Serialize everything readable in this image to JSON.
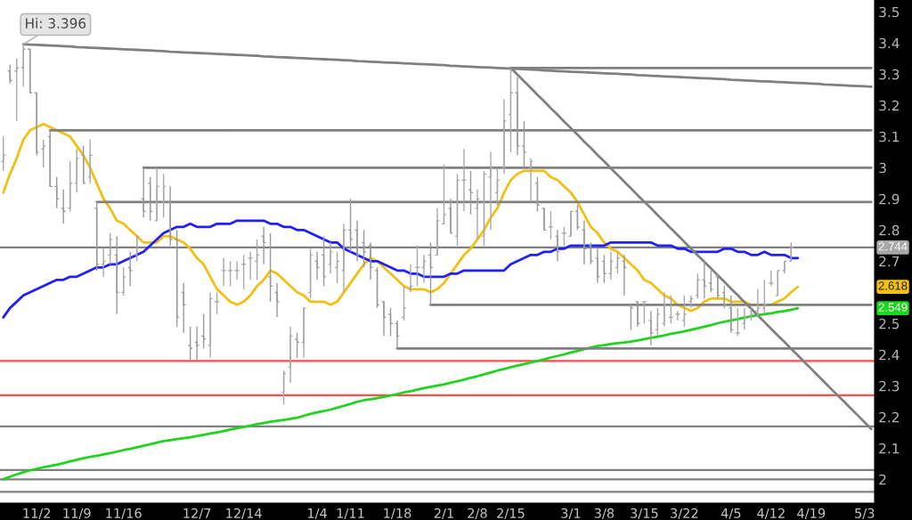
{
  "chart_data": {
    "type": "candlestick",
    "categories": [
      null,
      null,
      null,
      null,
      null,
      "11/2",
      null,
      null,
      null,
      null,
      null,
      "11/9",
      null,
      null,
      null,
      null,
      null,
      null,
      "11/16",
      null,
      null,
      null,
      null,
      null,
      null,
      null,
      null,
      null,
      null,
      "12/7",
      null,
      null,
      null,
      null,
      null,
      null,
      "12/14",
      null,
      null,
      null,
      null,
      null,
      null,
      null,
      null,
      null,
      null,
      "1/4",
      null,
      null,
      null,
      null,
      "1/11",
      null,
      null,
      null,
      null,
      null,
      null,
      "1/18",
      null,
      null,
      null,
      null,
      null,
      null,
      "2/1",
      null,
      null,
      null,
      null,
      "2/8",
      null,
      null,
      null,
      null,
      "2/15",
      null,
      null,
      null,
      null,
      null,
      null,
      null,
      null,
      "3/1",
      null,
      null,
      null,
      null,
      "3/8",
      null,
      null,
      null,
      null,
      null,
      "3/15",
      null,
      null,
      null,
      null,
      null,
      "3/22",
      null,
      null,
      null,
      null,
      null,
      null,
      "4/5",
      null,
      null,
      null,
      null,
      null,
      "4/12",
      null,
      null,
      null,
      null,
      null,
      "4/19",
      null,
      null,
      null,
      null,
      null,
      null,
      null,
      "5/3",
      null
    ],
    "ohlc": [
      [
        3.02,
        3.1,
        2.99,
        3.04
      ],
      [
        3.31,
        3.33,
        3.27,
        3.28
      ],
      [
        3.31,
        3.35,
        3.15,
        3.32
      ],
      [
        3.32,
        3.396,
        3.26,
        3.38
      ],
      [
        3.38,
        3.38,
        3.24,
        3.24
      ],
      [
        3.24,
        3.24,
        3.04,
        3.05
      ],
      [
        3.06,
        3.09,
        3.0,
        3.07
      ],
      [
        3.1,
        3.12,
        2.94,
        2.94
      ],
      [
        2.94,
        2.97,
        2.87,
        2.9
      ],
      [
        2.87,
        2.93,
        2.82,
        2.86
      ],
      [
        2.87,
        3.02,
        2.86,
        2.95
      ],
      [
        2.95,
        3.06,
        2.92,
        3.03
      ],
      [
        3.04,
        3.07,
        2.95,
        2.95
      ],
      [
        2.97,
        3.09,
        2.95,
        3.04
      ],
      [
        2.87,
        2.89,
        2.67,
        2.69
      ],
      [
        2.69,
        2.74,
        2.65,
        2.7
      ],
      [
        2.72,
        2.79,
        2.69,
        2.77
      ],
      [
        2.72,
        2.78,
        2.53,
        2.6
      ],
      [
        2.6,
        2.68,
        2.59,
        2.65
      ],
      [
        2.68,
        2.73,
        2.62,
        2.67
      ],
      [
        2.72,
        2.78,
        2.7,
        2.78
      ],
      [
        2.9,
        3.0,
        2.84,
        2.86
      ],
      [
        2.95,
        2.97,
        2.83,
        2.86
      ],
      [
        2.83,
        3.0,
        2.83,
        2.94
      ],
      [
        2.89,
        2.98,
        2.84,
        2.94
      ],
      [
        2.89,
        2.94,
        2.75,
        2.77
      ],
      [
        2.77,
        2.8,
        2.49,
        2.52
      ],
      [
        2.6,
        2.63,
        2.47,
        2.56
      ],
      [
        2.43,
        2.49,
        2.38,
        2.42
      ],
      [
        2.44,
        2.49,
        2.38,
        2.43
      ],
      [
        2.46,
        2.53,
        2.42,
        2.45
      ],
      [
        2.43,
        2.6,
        2.39,
        2.58
      ],
      [
        2.57,
        2.6,
        2.53,
        2.57
      ],
      [
        2.67,
        2.71,
        2.62,
        2.67
      ],
      [
        2.67,
        2.7,
        2.62,
        2.67
      ],
      [
        2.67,
        2.7,
        2.64,
        2.67
      ],
      [
        2.69,
        2.72,
        2.61,
        2.69
      ],
      [
        2.71,
        2.73,
        2.64,
        2.71
      ],
      [
        2.7,
        2.77,
        2.64,
        2.72
      ],
      [
        2.78,
        2.81,
        2.69,
        2.76
      ],
      [
        2.65,
        2.79,
        2.57,
        2.62
      ],
      [
        2.6,
        2.63,
        2.52,
        2.57
      ],
      [
        2.28,
        2.35,
        2.24,
        2.34
      ],
      [
        2.36,
        2.49,
        2.31,
        2.46
      ],
      [
        2.45,
        2.47,
        2.39,
        2.44
      ],
      [
        2.44,
        2.55,
        2.39,
        2.55
      ],
      [
        2.6,
        2.74,
        2.58,
        2.72
      ],
      [
        2.7,
        2.73,
        2.64,
        2.68
      ],
      [
        2.72,
        2.78,
        2.62,
        2.65
      ],
      [
        2.69,
        2.76,
        2.66,
        2.73
      ],
      [
        2.68,
        2.73,
        2.63,
        2.7
      ],
      [
        2.67,
        2.82,
        2.6,
        2.8
      ],
      [
        2.8,
        2.9,
        2.73,
        2.77
      ],
      [
        2.8,
        2.83,
        2.7,
        2.72
      ],
      [
        2.76,
        2.8,
        2.68,
        2.73
      ],
      [
        2.75,
        2.76,
        2.64,
        2.68
      ],
      [
        2.67,
        2.68,
        2.55,
        2.56
      ],
      [
        2.57,
        2.57,
        2.46,
        2.52
      ],
      [
        2.53,
        2.55,
        2.46,
        2.5
      ],
      [
        2.5,
        2.51,
        2.42,
        2.46
      ],
      [
        2.52,
        2.62,
        2.51,
        2.55
      ],
      [
        2.61,
        2.69,
        2.6,
        2.62
      ],
      [
        2.68,
        2.75,
        2.62,
        2.68
      ],
      [
        2.68,
        2.72,
        2.63,
        2.7
      ],
      [
        2.72,
        2.76,
        2.56,
        2.68
      ],
      [
        2.72,
        2.87,
        2.72,
        2.83
      ],
      [
        2.82,
        3.01,
        2.82,
        2.85
      ],
      [
        2.87,
        2.9,
        2.79,
        2.79
      ],
      [
        2.78,
        2.98,
        2.75,
        2.96
      ],
      [
        2.96,
        3.06,
        2.86,
        2.96
      ],
      [
        2.93,
        2.99,
        2.85,
        2.92
      ],
      [
        2.87,
        2.93,
        2.77,
        2.9
      ],
      [
        2.78,
        2.99,
        2.75,
        2.98
      ],
      [
        2.97,
        3.05,
        2.8,
        3.0
      ],
      [
        2.92,
        3.0,
        2.88,
        2.96
      ],
      [
        3.0,
        3.22,
        2.98,
        3.15
      ],
      [
        3.17,
        3.32,
        3.05,
        3.24
      ],
      [
        3.24,
        3.29,
        3.04,
        3.07
      ],
      [
        3.07,
        3.15,
        3.0,
        3.05
      ],
      [
        3.0,
        3.03,
        2.89,
        3.02
      ],
      [
        2.95,
        2.97,
        2.86,
        2.88
      ],
      [
        2.87,
        2.87,
        2.8,
        2.8
      ],
      [
        2.81,
        2.86,
        2.77,
        2.81
      ],
      [
        2.78,
        2.8,
        2.7,
        2.73
      ],
      [
        2.79,
        2.81,
        2.75,
        2.79
      ],
      [
        2.78,
        2.86,
        2.78,
        2.86
      ],
      [
        2.86,
        2.88,
        2.8,
        2.81
      ],
      [
        2.8,
        2.83,
        2.69,
        2.74
      ],
      [
        2.75,
        2.76,
        2.69,
        2.7
      ],
      [
        2.71,
        2.74,
        2.63,
        2.65
      ],
      [
        2.7,
        2.72,
        2.63,
        2.66
      ],
      [
        2.66,
        2.73,
        2.64,
        2.7
      ],
      [
        2.68,
        2.73,
        2.66,
        2.71
      ],
      [
        2.7,
        2.72,
        2.59,
        2.68
      ],
      [
        2.56,
        2.56,
        2.48,
        2.55
      ],
      [
        2.57,
        2.57,
        2.49,
        2.5
      ],
      [
        2.57,
        2.57,
        2.5,
        2.57
      ],
      [
        2.51,
        2.54,
        2.43,
        2.47
      ],
      [
        2.48,
        2.55,
        2.46,
        2.53
      ],
      [
        2.5,
        2.6,
        2.49,
        2.56
      ],
      [
        2.52,
        2.59,
        2.5,
        2.52
      ],
      [
        2.53,
        2.54,
        2.51,
        2.53
      ],
      [
        2.51,
        2.59,
        2.49,
        2.53
      ],
      [
        2.57,
        2.59,
        2.55,
        2.58
      ],
      [
        2.59,
        2.66,
        2.58,
        2.64
      ],
      [
        2.64,
        2.7,
        2.58,
        2.62
      ],
      [
        2.63,
        2.67,
        2.6,
        2.61
      ],
      [
        2.65,
        2.66,
        2.58,
        2.59
      ],
      [
        2.6,
        2.62,
        2.55,
        2.56
      ],
      [
        2.55,
        2.59,
        2.47,
        2.48
      ],
      [
        2.47,
        2.55,
        2.46,
        2.47
      ],
      [
        2.5,
        2.55,
        2.48,
        2.52
      ],
      [
        2.52,
        2.55,
        2.51,
        2.53
      ],
      [
        2.54,
        2.61,
        2.52,
        2.55
      ],
      [
        2.55,
        2.64,
        2.53,
        2.56
      ],
      [
        2.63,
        2.67,
        2.62,
        2.63
      ],
      [
        2.59,
        2.67,
        2.59,
        2.67
      ],
      [
        2.67,
        2.7,
        2.66,
        2.7
      ],
      [
        2.7,
        2.76,
        2.7,
        2.744
      ],
      null,
      null,
      null,
      null,
      null,
      null,
      null,
      null,
      null,
      null,
      null,
      null
    ],
    "colors": [
      "#a8a8a8",
      "#9a9a9a",
      "#a8a8a8",
      "#a8a8a8",
      "#9a9a9a",
      "#9a9a9a",
      "#a8a8a8",
      "#9a9a9a",
      "#9a9a9a",
      "#9a9a9a",
      "#a8a8a8",
      "#a8a8a8",
      "#9a9a9a",
      "#a8a8a8",
      "#9a9a9a",
      "#a8a8a8",
      "#a8a8a8",
      "#9a9a9a",
      "#a8a8a8",
      "#9a9a9a",
      "#a8a8a8",
      "#9a9a9a",
      "#9a9a9a",
      "#a8a8a8",
      "#a8a8a8",
      "#9a9a9a",
      "#9a9a9a",
      "#9a9a9a",
      "#9a9a9a",
      "#9a9a9a",
      "#9a9a9a",
      "#a8a8a8",
      "#a8a8a8",
      "#a8a8a8",
      "#a8a8a8",
      "#a8a8a8",
      "#a8a8a8",
      "#a8a8a8",
      "#a8a8a8",
      "#9a9a9a",
      "#9a9a9a",
      "#9a9a9a",
      "#a8a8a8",
      "#a8a8a8",
      "#9a9a9a",
      "#a8a8a8",
      "#a8a8a8",
      "#9a9a9a",
      "#9a9a9a",
      "#a8a8a8",
      "#a8a8a8",
      "#a8a8a8",
      "#9a9a9a",
      "#9a9a9a",
      "#9a9a9a",
      "#9a9a9a",
      "#9a9a9a",
      "#9a9a9a",
      "#9a9a9a",
      "#9a9a9a",
      "#a8a8a8",
      "#a8a8a8",
      "#a8a8a8",
      "#a8a8a8",
      "#9a9a9a",
      "#a8a8a8",
      "#a8a8a8",
      "#9a9a9a",
      "#a8a8a8",
      "#a8a8a8",
      "#9a9a9a",
      "#a8a8a8",
      "#a8a8a8",
      "#a8a8a8",
      "#a8a8a8",
      "#a8a8a8",
      "#a8a8a8",
      "#9a9a9a",
      "#9a9a9a",
      "#a8a8a8",
      "#9a9a9a",
      "#9a9a9a",
      "#a8a8a8",
      "#9a9a9a",
      "#a8a8a8",
      "#a8a8a8",
      "#9a9a9a",
      "#9a9a9a",
      "#9a9a9a",
      "#9a9a9a",
      "#9a9a9a",
      "#a8a8a8",
      "#a8a8a8",
      "#9a9a9a",
      "#9a9a9a",
      "#9a9a9a",
      "#a8a8a8",
      "#9a9a9a",
      "#a8a8a8",
      "#a8a8a8",
      "#a8a8a8",
      "#a8a8a8",
      "#a8a8a8",
      "#a8a8a8",
      "#a8a8a8",
      "#9a9a9a",
      "#9a9a9a",
      "#9a9a9a",
      "#9a9a9a",
      "#9a9a9a",
      "#a8a8a8",
      "#a8a8a8",
      "#a8a8a8",
      "#a8a8a8",
      "#a8a8a8",
      "#a8a8a8",
      "#a8a8a8",
      "#a8a8a8",
      "#a8a8a8",
      null,
      null,
      null,
      null,
      null,
      null,
      null,
      null,
      null,
      null,
      null,
      null
    ],
    "series": [
      {
        "type": "line",
        "color": "#f2c014",
        "values": [
          2.92,
          2.98,
          3.03,
          3.09,
          3.12,
          3.13,
          3.14,
          3.13,
          3.12,
          3.11,
          3.1,
          3.07,
          3.04,
          3.0,
          2.95,
          2.9,
          2.87,
          2.83,
          2.82,
          2.8,
          2.78,
          2.76,
          2.76,
          2.76,
          2.78,
          2.78,
          2.77,
          2.76,
          2.74,
          2.71,
          2.69,
          2.65,
          2.61,
          2.59,
          2.57,
          2.56,
          2.57,
          2.59,
          2.62,
          2.64,
          2.67,
          2.66,
          2.64,
          2.62,
          2.6,
          2.59,
          2.57,
          2.57,
          2.57,
          2.56,
          2.57,
          2.6,
          2.63,
          2.66,
          2.69,
          2.71,
          2.7,
          2.68,
          2.66,
          2.64,
          2.62,
          2.61,
          2.61,
          2.61,
          2.6,
          2.61,
          2.63,
          2.66,
          2.69,
          2.72,
          2.74,
          2.77,
          2.8,
          2.84,
          2.87,
          2.92,
          2.96,
          2.98,
          2.99,
          2.99,
          2.99,
          2.99,
          2.97,
          2.96,
          2.94,
          2.92,
          2.89,
          2.85,
          2.81,
          2.79,
          2.76,
          2.74,
          2.73,
          2.71,
          2.69,
          2.67,
          2.64,
          2.63,
          2.61,
          2.59,
          2.58,
          2.56,
          2.55,
          2.54,
          2.55,
          2.57,
          2.58,
          2.58,
          2.58,
          2.57,
          2.57,
          2.57,
          2.56,
          2.56,
          2.56,
          2.56,
          2.57,
          2.58,
          2.6,
          2.618,
          null,
          null,
          null,
          null,
          null,
          null,
          null,
          null,
          null,
          null,
          null
        ]
      },
      {
        "type": "line",
        "color": "#1f1fff",
        "values": [
          2.52,
          2.55,
          2.57,
          2.59,
          2.6,
          2.61,
          2.62,
          2.63,
          2.64,
          2.64,
          2.65,
          2.65,
          2.66,
          2.67,
          2.68,
          2.68,
          2.69,
          2.69,
          2.7,
          2.71,
          2.72,
          2.73,
          2.75,
          2.77,
          2.79,
          2.8,
          2.81,
          2.81,
          2.82,
          2.81,
          2.81,
          2.81,
          2.82,
          2.82,
          2.82,
          2.83,
          2.83,
          2.83,
          2.83,
          2.83,
          2.82,
          2.82,
          2.81,
          2.81,
          2.8,
          2.8,
          2.79,
          2.78,
          2.77,
          2.76,
          2.76,
          2.74,
          2.73,
          2.72,
          2.71,
          2.7,
          2.7,
          2.69,
          2.68,
          2.67,
          2.67,
          2.66,
          2.66,
          2.65,
          2.65,
          2.65,
          2.65,
          2.66,
          2.66,
          2.67,
          2.67,
          2.67,
          2.67,
          2.67,
          2.67,
          2.67,
          2.69,
          2.7,
          2.71,
          2.72,
          2.72,
          2.73,
          2.73,
          2.74,
          2.74,
          2.75,
          2.75,
          2.75,
          2.75,
          2.75,
          2.75,
          2.76,
          2.76,
          2.76,
          2.76,
          2.76,
          2.76,
          2.76,
          2.75,
          2.75,
          2.75,
          2.74,
          2.74,
          2.73,
          2.73,
          2.73,
          2.73,
          2.73,
          2.74,
          2.74,
          2.73,
          2.73,
          2.72,
          2.72,
          2.73,
          2.72,
          2.72,
          2.72,
          2.71,
          2.71,
          null,
          null,
          null,
          null,
          null,
          null,
          null,
          null,
          null,
          null,
          null
        ]
      },
      {
        "type": "line",
        "color": "#1ed41e",
        "values": [
          2.0,
          2.009,
          2.016,
          2.023,
          2.029,
          2.034,
          2.039,
          2.043,
          2.047,
          2.052,
          2.058,
          2.063,
          2.068,
          2.072,
          2.076,
          2.08,
          2.084,
          2.089,
          2.094,
          2.098,
          2.103,
          2.108,
          2.113,
          2.118,
          2.123,
          2.126,
          2.129,
          2.132,
          2.135,
          2.139,
          2.143,
          2.147,
          2.151,
          2.155,
          2.16,
          2.164,
          2.168,
          2.172,
          2.177,
          2.181,
          2.185,
          2.188,
          2.191,
          2.194,
          2.198,
          2.204,
          2.21,
          2.215,
          2.219,
          2.224,
          2.23,
          2.236,
          2.242,
          2.249,
          2.254,
          2.257,
          2.261,
          2.265,
          2.269,
          2.274,
          2.279,
          2.283,
          2.288,
          2.293,
          2.297,
          2.301,
          2.305,
          2.31,
          2.315,
          2.32,
          2.326,
          2.331,
          2.337,
          2.343,
          2.349,
          2.354,
          2.36,
          2.365,
          2.37,
          2.375,
          2.38,
          2.385,
          2.391,
          2.396,
          2.401,
          2.407,
          2.412,
          2.418,
          2.423,
          2.428,
          2.431,
          2.434,
          2.437,
          2.439,
          2.442,
          2.446,
          2.45,
          2.454,
          2.458,
          2.462,
          2.467,
          2.471,
          2.475,
          2.48,
          2.485,
          2.49,
          2.495,
          2.501,
          2.506,
          2.51,
          2.514,
          2.519,
          2.523,
          2.527,
          2.53,
          2.533,
          2.537,
          2.54,
          2.544,
          2.549,
          null,
          null,
          null,
          null,
          null,
          null,
          null,
          null,
          null,
          null,
          null
        ]
      },
      {
        "type": "line",
        "color": "#808080",
        "values": [
          null,
          null,
          null,
          3.396,
          3.395,
          3.394,
          3.393,
          3.392,
          3.391,
          3.39,
          3.389,
          3.387,
          3.386,
          3.385,
          3.384,
          3.383,
          3.382,
          3.381,
          3.38,
          3.379,
          3.378,
          3.377,
          3.376,
          3.375,
          3.374,
          3.372,
          3.371,
          3.37,
          3.369,
          3.368,
          3.367,
          3.366,
          3.365,
          3.364,
          3.363,
          3.362,
          3.361,
          3.36,
          3.359,
          3.357,
          3.356,
          3.355,
          3.354,
          3.353,
          3.352,
          3.351,
          3.35,
          3.349,
          3.348,
          3.347,
          3.346,
          3.345,
          3.344,
          3.342,
          3.341,
          3.34,
          3.339,
          3.338,
          3.337,
          3.336,
          3.335,
          3.334,
          3.333,
          3.332,
          3.331,
          3.33,
          3.329,
          3.327,
          3.326,
          3.325,
          3.324,
          3.323,
          3.322,
          3.321,
          3.32,
          3.319,
          3.318,
          3.317,
          3.316,
          3.315,
          3.314,
          3.312,
          3.311,
          3.31,
          3.309,
          3.308,
          3.307,
          3.306,
          3.305,
          3.304,
          3.303,
          3.302,
          3.301,
          3.3,
          3.299,
          3.297,
          3.296,
          3.295,
          3.294,
          3.293,
          3.292,
          3.291,
          3.29,
          3.289,
          3.288,
          3.287,
          3.286,
          3.285,
          3.284,
          3.282,
          3.281,
          3.28,
          3.279,
          3.278,
          3.277,
          3.276,
          3.275,
          3.274,
          3.273,
          3.272,
          3.271,
          3.27,
          3.269,
          3.267,
          3.266,
          3.265,
          3.264,
          3.263,
          3.262,
          3.261,
          3.26
        ]
      },
      {
        "type": "line",
        "color": "#808080",
        "values": [
          null,
          null,
          null,
          null,
          null,
          null,
          null,
          null,
          null,
          null,
          null,
          null,
          null,
          null,
          null,
          null,
          null,
          null,
          null,
          null,
          null,
          null,
          null,
          null,
          null,
          null,
          null,
          null,
          null,
          null,
          null,
          null,
          null,
          null,
          null,
          null,
          null,
          null,
          null,
          null,
          null,
          null,
          null,
          null,
          null,
          null,
          null,
          null,
          null,
          null,
          null,
          null,
          null,
          null,
          null,
          null,
          null,
          null,
          null,
          null,
          null,
          null,
          null,
          null,
          null,
          null,
          null,
          null,
          null,
          null,
          null,
          null,
          null,
          null,
          null,
          null,
          3.32,
          3.32,
          3.32,
          3.32,
          3.32,
          3.32,
          3.32,
          3.32,
          3.32,
          3.32,
          3.32,
          3.32,
          3.32,
          3.32,
          3.32,
          3.32,
          3.32,
          3.32,
          3.32,
          3.32,
          3.32,
          3.32,
          3.32,
          3.32,
          3.32,
          3.32,
          3.32,
          3.32,
          3.32,
          3.32,
          3.32,
          3.32,
          3.32,
          3.32,
          3.32,
          3.32,
          3.32,
          3.32,
          3.32,
          3.32,
          3.32,
          3.32,
          3.32,
          3.32,
          3.32,
          3.32,
          3.32,
          3.32,
          3.32,
          3.32,
          3.32,
          3.32,
          3.32,
          3.32,
          3.32
        ]
      },
      {
        "type": "line",
        "color": "#808080",
        "values": [
          null,
          null,
          null,
          null,
          null,
          null,
          null,
          null,
          null,
          null,
          null,
          null,
          null,
          null,
          null,
          null,
          null,
          null,
          null,
          null,
          null,
          null,
          null,
          null,
          null,
          null,
          null,
          null,
          null,
          null,
          null,
          null,
          null,
          null,
          null,
          null,
          null,
          null,
          null,
          null,
          null,
          null,
          null,
          null,
          null,
          null,
          null,
          null,
          null,
          null,
          null,
          null,
          null,
          null,
          null,
          null,
          null,
          null,
          null,
          null,
          null,
          null,
          null,
          null,
          null,
          null,
          null,
          null,
          null,
          null,
          null,
          null,
          null,
          null,
          null,
          null,
          3.32,
          3.299,
          3.277,
          3.256,
          3.234,
          3.213,
          3.191,
          3.17,
          3.148,
          3.127,
          3.106,
          3.084,
          3.063,
          3.041,
          3.02,
          2.998,
          2.977,
          2.955,
          2.934,
          2.912,
          2.891,
          2.87,
          2.848,
          2.827,
          2.805,
          2.784,
          2.762,
          2.741,
          2.719,
          2.698,
          2.677,
          2.655,
          2.634,
          2.612,
          2.591,
          2.569,
          2.548,
          2.526,
          2.505,
          2.483,
          2.462,
          2.441,
          2.419,
          2.398,
          2.376,
          2.355,
          2.333,
          2.312,
          2.29,
          2.269,
          2.248,
          2.226,
          2.205,
          2.183,
          2.162
        ]
      },
      {
        "type": "line",
        "color": "#808080",
        "values": [
          null,
          null,
          null,
          null,
          null,
          null,
          null,
          3.12,
          3.12,
          3.12,
          3.12,
          3.12,
          3.12,
          3.12,
          3.12,
          3.12,
          3.12,
          3.12,
          3.12,
          3.12,
          3.12,
          3.12,
          3.12,
          3.12,
          3.12,
          3.12,
          3.12,
          3.12,
          3.12,
          3.12,
          3.12,
          3.12,
          3.12,
          3.12,
          3.12,
          3.12,
          3.12,
          3.12,
          3.12,
          3.12,
          3.12,
          3.12,
          3.12,
          3.12,
          3.12,
          3.12,
          3.12,
          3.12,
          3.12,
          3.12,
          3.12,
          3.12,
          3.12,
          3.12,
          3.12,
          3.12,
          3.12,
          3.12,
          3.12,
          3.12,
          3.12,
          3.12,
          3.12,
          3.12,
          3.12,
          3.12,
          3.12,
          3.12,
          3.12,
          3.12,
          3.12,
          3.12,
          3.12,
          3.12,
          3.12,
          3.12,
          3.12,
          3.12,
          3.12,
          3.12,
          3.12,
          3.12,
          3.12,
          3.12,
          3.12,
          3.12,
          3.12,
          3.12,
          3.12,
          3.12,
          3.12,
          3.12,
          3.12,
          3.12,
          3.12,
          3.12,
          3.12,
          3.12,
          3.12,
          3.12,
          3.12,
          3.12,
          3.12,
          3.12,
          3.12,
          3.12,
          3.12,
          3.12,
          3.12,
          3.12,
          3.12,
          3.12,
          3.12,
          3.12,
          3.12,
          3.12,
          3.12,
          3.12,
          3.12,
          3.12,
          3.12,
          3.12,
          3.12,
          3.12,
          3.12,
          3.12,
          3.12,
          3.12,
          3.12,
          3.12,
          3.12
        ]
      },
      {
        "type": "line",
        "color": "#808080",
        "values": [
          null,
          null,
          null,
          null,
          null,
          null,
          null,
          null,
          null,
          null,
          null,
          null,
          null,
          null,
          null,
          null,
          null,
          null,
          null,
          null,
          null,
          3.0,
          3.0,
          3.0,
          3.0,
          3.0,
          3.0,
          3.0,
          3.0,
          3.0,
          3.0,
          3.0,
          3.0,
          3.0,
          3.0,
          3.0,
          3.0,
          3.0,
          3.0,
          3.0,
          3.0,
          3.0,
          3.0,
          3.0,
          3.0,
          3.0,
          3.0,
          3.0,
          3.0,
          3.0,
          3.0,
          3.0,
          3.0,
          3.0,
          3.0,
          3.0,
          3.0,
          3.0,
          3.0,
          3.0,
          3.0,
          3.0,
          3.0,
          3.0,
          3.0,
          3.0,
          3.0,
          3.0,
          3.0,
          3.0,
          3.0,
          3.0,
          3.0,
          3.0,
          3.0,
          3.0,
          3.0,
          3.0,
          3.0,
          3.0,
          3.0,
          3.0,
          3.0,
          3.0,
          3.0,
          3.0,
          3.0,
          3.0,
          3.0,
          3.0,
          3.0,
          3.0,
          3.0,
          3.0,
          3.0,
          3.0,
          3.0,
          3.0,
          3.0,
          3.0,
          3.0,
          3.0,
          3.0,
          3.0,
          3.0,
          3.0,
          3.0,
          3.0,
          3.0,
          3.0,
          3.0,
          3.0,
          3.0,
          3.0,
          3.0,
          3.0,
          3.0,
          3.0,
          3.0,
          3.0,
          3.0,
          3.0,
          3.0,
          3.0,
          3.0,
          3.0,
          3.0,
          3.0,
          3.0,
          3.0,
          3.0
        ]
      },
      {
        "type": "line",
        "color": "#808080",
        "values": [
          null,
          null,
          null,
          null,
          null,
          null,
          null,
          null,
          null,
          null,
          null,
          null,
          null,
          null,
          2.89,
          2.89,
          2.89,
          2.89,
          2.89,
          2.89,
          2.89,
          2.89,
          2.89,
          2.89,
          2.89,
          2.89,
          2.89,
          2.89,
          2.89,
          2.89,
          2.89,
          2.89,
          2.89,
          2.89,
          2.89,
          2.89,
          2.89,
          2.89,
          2.89,
          2.89,
          2.89,
          2.89,
          2.89,
          2.89,
          2.89,
          2.89,
          2.89,
          2.89,
          2.89,
          2.89,
          2.89,
          2.89,
          2.89,
          2.89,
          2.89,
          2.89,
          2.89,
          2.89,
          2.89,
          2.89,
          2.89,
          2.89,
          2.89,
          2.89,
          2.89,
          2.89,
          2.89,
          2.89,
          2.89,
          2.89,
          2.89,
          2.89,
          2.89,
          2.89,
          2.89,
          2.89,
          2.89,
          2.89,
          2.89,
          2.89,
          2.89,
          2.89,
          2.89,
          2.89,
          2.89,
          2.89,
          2.89,
          2.89,
          2.89,
          2.89,
          2.89,
          2.89,
          2.89,
          2.89,
          2.89,
          2.89,
          2.89,
          2.89,
          2.89,
          2.89,
          2.89,
          2.89,
          2.89,
          2.89,
          2.89,
          2.89,
          2.89,
          2.89,
          2.89,
          2.89,
          2.89,
          2.89,
          2.89,
          2.89,
          2.89,
          2.89,
          2.89,
          2.89,
          2.89,
          2.89,
          2.89,
          2.89,
          2.89,
          2.89,
          2.89,
          2.89,
          2.89,
          2.89,
          2.89,
          2.89,
          2.89
        ]
      },
      {
        "type": "line",
        "color": "#808080",
        "values": [
          null,
          null,
          null,
          null,
          null,
          null,
          null,
          null,
          null,
          null,
          null,
          null,
          null,
          null,
          null,
          null,
          null,
          null,
          null,
          null,
          null,
          null,
          null,
          null,
          null,
          null,
          null,
          null,
          null,
          null,
          null,
          null,
          null,
          null,
          null,
          null,
          null,
          null,
          null,
          null,
          null,
          null,
          null,
          null,
          null,
          null,
          null,
          null,
          null,
          null,
          null,
          null,
          null,
          null,
          null,
          null,
          null,
          null,
          null,
          null,
          null,
          null,
          null,
          null,
          2.56,
          2.56,
          2.56,
          2.56,
          2.56,
          2.56,
          2.56,
          2.56,
          2.56,
          2.56,
          2.56,
          2.56,
          2.56,
          2.56,
          2.56,
          2.56,
          2.56,
          2.56,
          2.56,
          2.56,
          2.56,
          2.56,
          2.56,
          2.56,
          2.56,
          2.56,
          2.56,
          2.56,
          2.56,
          2.56,
          2.56,
          2.56,
          2.56,
          2.56,
          2.56,
          2.56,
          2.56,
          2.56,
          2.56,
          2.56,
          2.56,
          2.56,
          2.56,
          2.56,
          2.56,
          2.56,
          2.56,
          2.56,
          2.56,
          2.56,
          2.56,
          2.56,
          2.56,
          2.56,
          2.56,
          2.56,
          2.56,
          2.56,
          2.56,
          2.56,
          2.56,
          2.56,
          2.56,
          2.56,
          2.56,
          2.56,
          2.56
        ]
      },
      {
        "type": "line",
        "color": "#808080",
        "values": [
          null,
          null,
          null,
          null,
          null,
          null,
          null,
          null,
          null,
          null,
          null,
          null,
          null,
          null,
          null,
          null,
          null,
          null,
          null,
          null,
          null,
          null,
          null,
          null,
          null,
          null,
          null,
          null,
          null,
          null,
          null,
          null,
          null,
          null,
          null,
          null,
          null,
          null,
          null,
          null,
          null,
          null,
          null,
          null,
          null,
          null,
          null,
          null,
          null,
          null,
          null,
          null,
          null,
          null,
          null,
          null,
          null,
          null,
          null,
          2.42,
          2.42,
          2.42,
          2.42,
          2.42,
          2.42,
          2.42,
          2.42,
          2.42,
          2.42,
          2.42,
          2.42,
          2.42,
          2.42,
          2.42,
          2.42,
          2.42,
          2.42,
          2.42,
          2.42,
          2.42,
          2.42,
          2.42,
          2.42,
          2.42,
          2.42,
          2.42,
          2.42,
          2.42,
          2.42,
          2.42,
          2.42,
          2.42,
          2.42,
          2.42,
          2.42,
          2.42,
          2.42,
          2.42,
          2.42,
          2.42,
          2.42,
          2.42,
          2.42,
          2.42,
          2.42,
          2.42,
          2.42,
          2.42,
          2.42,
          2.42,
          2.42,
          2.42,
          2.42,
          2.42,
          2.42,
          2.42,
          2.42,
          2.42,
          2.42,
          2.42,
          2.42,
          2.42,
          2.42,
          2.42,
          2.42,
          2.42,
          2.42,
          2.42,
          2.42,
          2.42,
          2.42
        ]
      }
    ],
    "ref_lines": [
      {
        "axis": "y",
        "value": 2.744,
        "color": "#808080"
      },
      {
        "axis": "y",
        "value": 2.38,
        "color": "#ff4d4d"
      },
      {
        "axis": "y",
        "value": 2.27,
        "color": "#ff4d4d"
      },
      {
        "axis": "y",
        "value": 2.17,
        "color": "#808080"
      },
      {
        "axis": "y",
        "value": 2.03,
        "color": "#808080"
      },
      {
        "axis": "y",
        "value": 2.0,
        "color": "#808080"
      },
      {
        "axis": "y",
        "value": 1.96,
        "color": "#808080"
      }
    ],
    "ylim": [
      1.924,
      3.538
    ],
    "yticks": [
      2,
      2.1,
      2.2,
      2.3,
      2.4,
      2.5,
      2.7,
      2.8,
      2.9,
      3,
      3.1,
      3.2,
      3.3,
      3.4,
      3.5
    ],
    "annotations": [
      {
        "text": "Hi: 3.396",
        "y": 3.396
      },
      {
        "text": "2.744",
        "y": 2.744
      },
      {
        "text": "2.618",
        "y": 2.618
      },
      {
        "text": "2.549",
        "y": 2.549
      }
    ]
  }
}
